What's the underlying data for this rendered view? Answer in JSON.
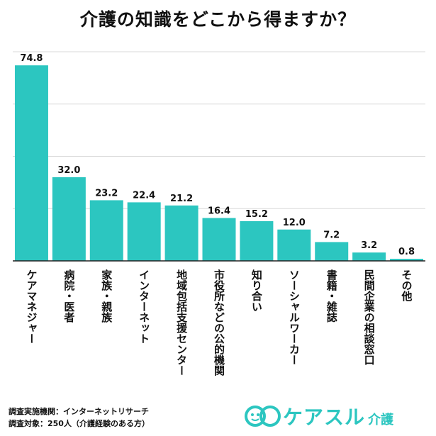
{
  "title": "介護の知識をどこから得ますか？",
  "chart_data": {
    "type": "bar",
    "title": "介護の知識をどこから得ますか？",
    "categories": [
      "ケアマネジャー",
      "病院・医者",
      "家族・親族",
      "インターネット",
      "地域包括支援センター",
      "市役所などの公的機関",
      "知り合い",
      "ソーシャルワーカー",
      "書籍・雑誌",
      "民間企業の相談窓口",
      "その他"
    ],
    "values": [
      74.8,
      32.0,
      23.2,
      22.4,
      21.2,
      16.4,
      15.2,
      12.0,
      7.2,
      3.2,
      0.8
    ],
    "value_labels": [
      "74.8",
      "32.0",
      "23.2",
      "22.4",
      "21.2",
      "16.4",
      "15.2",
      "12.0",
      "7.2",
      "3.2",
      "0.8"
    ],
    "ylim": [
      0,
      80
    ],
    "gridlines": [
      20,
      40,
      60,
      80
    ],
    "grid": true,
    "bar_color": "#2cc6c0"
  },
  "footer": {
    "line1": "調査実施機関：インターネットリサーチ",
    "line2": "調査対象：250人（介護経験のある方）"
  },
  "brand": {
    "name": "ケアスル",
    "sub": "介護",
    "color": "#2cc6c0"
  }
}
